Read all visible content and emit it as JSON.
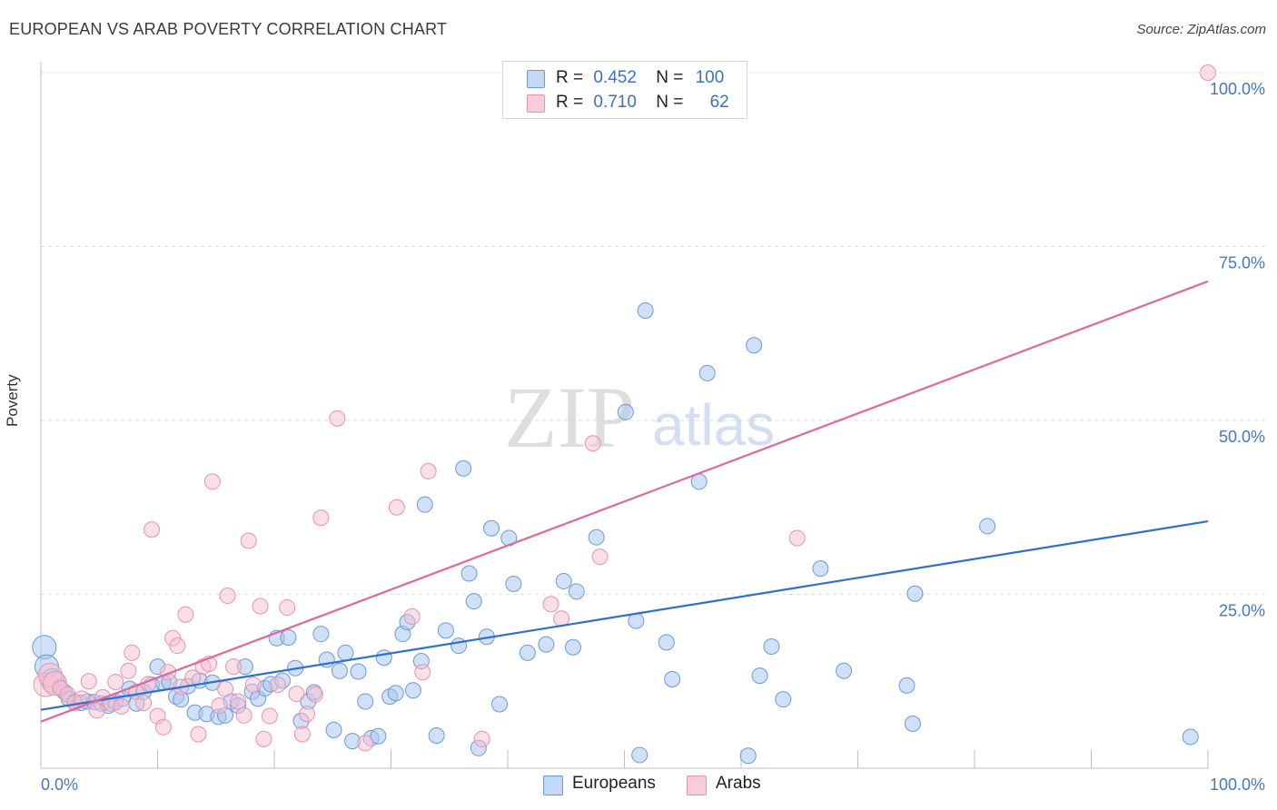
{
  "header": {
    "title": "EUROPEAN VS ARAB POVERTY CORRELATION CHART",
    "source": "Source: ZipAtlas.com"
  },
  "legend_stats": {
    "europeans": {
      "r_label": "R =",
      "r_value": "0.452",
      "n_label": "N =",
      "n_value": "100"
    },
    "arabs": {
      "r_label": "R =",
      "r_value": "0.710",
      "n_label": "N =",
      "n_value": "62"
    }
  },
  "watermark": {
    "zip": "ZIP",
    "atlas": "atlas"
  },
  "colors": {
    "europeans_fill": "#a9c6ee",
    "europeans_stroke": "#6c9ad8",
    "europeans_line": "#2f6fd0",
    "arabs_fill": "#f7bfd0",
    "arabs_stroke": "#e892ae",
    "arabs_line": "#e0689a",
    "tick_label": "#4477c4",
    "grid": "#dcdcdc"
  },
  "chart_data": {
    "type": "scatter",
    "title": "EUROPEAN VS ARAB POVERTY CORRELATION CHART",
    "xlabel": "",
    "ylabel": "Poverty",
    "xlim": [
      0,
      100
    ],
    "ylim": [
      0,
      100
    ],
    "x_tick_labels": [
      {
        "value": 0,
        "label": "0.0%"
      },
      {
        "value": 100,
        "label": "100.0%"
      }
    ],
    "y_tick_labels": [
      {
        "value": 25,
        "label": "25.0%"
      },
      {
        "value": 50,
        "label": "50.0%"
      },
      {
        "value": 75,
        "label": "75.0%"
      },
      {
        "value": 100,
        "label": "100.0%"
      }
    ],
    "grid": true,
    "legend_position": "bottom-center",
    "series": [
      {
        "name": "Europeans",
        "trend": {
          "x": [
            0,
            100
          ],
          "y": [
            8.4,
            35.5
          ]
        },
        "points": [
          [
            0.3,
            17.4
          ],
          [
            0.5,
            14.6
          ],
          [
            1.0,
            12.6
          ],
          [
            1.6,
            11.7
          ],
          [
            2.0,
            11.0
          ],
          [
            2.4,
            10.0
          ],
          [
            2.9,
            9.5
          ],
          [
            3.4,
            9.4
          ],
          [
            4.0,
            9.6
          ],
          [
            4.6,
            9.5
          ],
          [
            5.2,
            9.3
          ],
          [
            5.8,
            9.0
          ],
          [
            6.4,
            9.5
          ],
          [
            7.0,
            10.0
          ],
          [
            7.6,
            11.4
          ],
          [
            8.2,
            9.3
          ],
          [
            8.8,
            11.0
          ],
          [
            9.5,
            12.0
          ],
          [
            10.0,
            14.6
          ],
          [
            10.5,
            12.3
          ],
          [
            11.0,
            12.4
          ],
          [
            11.6,
            10.3
          ],
          [
            12.0,
            9.9
          ],
          [
            12.6,
            11.8
          ],
          [
            13.2,
            8.0
          ],
          [
            13.6,
            12.6
          ],
          [
            14.2,
            7.8
          ],
          [
            14.7,
            12.3
          ],
          [
            15.2,
            7.4
          ],
          [
            15.8,
            7.6
          ],
          [
            16.3,
            9.6
          ],
          [
            16.9,
            9.0
          ],
          [
            17.5,
            14.6
          ],
          [
            18.1,
            11.0
          ],
          [
            18.6,
            10.0
          ],
          [
            19.2,
            11.5
          ],
          [
            19.7,
            12.1
          ],
          [
            20.2,
            18.7
          ],
          [
            20.7,
            12.6
          ],
          [
            21.2,
            18.8
          ],
          [
            21.8,
            14.4
          ],
          [
            22.3,
            6.8
          ],
          [
            22.9,
            9.6
          ],
          [
            23.4,
            10.9
          ],
          [
            24.0,
            19.3
          ],
          [
            24.5,
            15.6
          ],
          [
            25.1,
            5.5
          ],
          [
            25.6,
            14.0
          ],
          [
            26.1,
            16.6
          ],
          [
            26.7,
            3.9
          ],
          [
            27.2,
            13.9
          ],
          [
            27.8,
            9.6
          ],
          [
            28.3,
            4.3
          ],
          [
            28.9,
            4.6
          ],
          [
            29.4,
            15.9
          ],
          [
            29.9,
            10.3
          ],
          [
            30.4,
            10.8
          ],
          [
            31.0,
            19.3
          ],
          [
            31.4,
            21.0
          ],
          [
            31.9,
            11.2
          ],
          [
            32.6,
            15.4
          ],
          [
            32.9,
            37.9
          ],
          [
            33.9,
            4.7
          ],
          [
            34.7,
            19.8
          ],
          [
            35.8,
            17.6
          ],
          [
            36.2,
            43.1
          ],
          [
            36.7,
            28.0
          ],
          [
            37.1,
            24.0
          ],
          [
            37.5,
            2.9
          ],
          [
            38.2,
            18.9
          ],
          [
            38.6,
            34.5
          ],
          [
            39.3,
            9.2
          ],
          [
            40.1,
            33.1
          ],
          [
            40.5,
            26.5
          ],
          [
            41.7,
            16.6
          ],
          [
            43.3,
            17.8
          ],
          [
            44.8,
            26.9
          ],
          [
            45.6,
            17.4
          ],
          [
            45.9,
            25.4
          ],
          [
            47.6,
            33.2
          ],
          [
            50.1,
            51.2
          ],
          [
            51.0,
            21.2
          ],
          [
            51.3,
            1.9
          ],
          [
            51.8,
            65.8
          ],
          [
            53.6,
            18.1
          ],
          [
            54.1,
            12.8
          ],
          [
            56.4,
            41.2
          ],
          [
            57.1,
            56.8
          ],
          [
            60.6,
            1.8
          ],
          [
            61.1,
            60.8
          ],
          [
            61.6,
            13.3
          ],
          [
            62.6,
            17.5
          ],
          [
            63.6,
            9.9
          ],
          [
            66.8,
            28.7
          ],
          [
            68.8,
            14.0
          ],
          [
            74.2,
            11.9
          ],
          [
            74.7,
            6.4
          ],
          [
            74.9,
            25.1
          ],
          [
            81.1,
            34.8
          ],
          [
            98.5,
            4.5
          ]
        ]
      },
      {
        "name": "Arabs",
        "trend": {
          "x": [
            0,
            100
          ],
          "y": [
            6.7,
            70.0
          ]
        },
        "points": [
          [
            0.4,
            12.0
          ],
          [
            0.8,
            13.4
          ],
          [
            1.2,
            12.2
          ],
          [
            1.7,
            11.5
          ],
          [
            2.3,
            10.6
          ],
          [
            2.9,
            9.4
          ],
          [
            3.5,
            10.0
          ],
          [
            4.1,
            12.5
          ],
          [
            4.8,
            8.3
          ],
          [
            5.3,
            10.2
          ],
          [
            6.0,
            9.3
          ],
          [
            6.4,
            12.4
          ],
          [
            6.9,
            8.9
          ],
          [
            7.5,
            14.0
          ],
          [
            7.8,
            16.6
          ],
          [
            8.2,
            11.0
          ],
          [
            8.8,
            9.4
          ],
          [
            9.2,
            12.1
          ],
          [
            9.5,
            34.3
          ],
          [
            10.0,
            7.5
          ],
          [
            10.5,
            5.9
          ],
          [
            10.9,
            13.8
          ],
          [
            11.3,
            18.7
          ],
          [
            11.7,
            17.6
          ],
          [
            12.0,
            11.7
          ],
          [
            12.4,
            22.1
          ],
          [
            13.0,
            13.0
          ],
          [
            13.5,
            4.9
          ],
          [
            13.9,
            14.6
          ],
          [
            14.4,
            15.0
          ],
          [
            14.7,
            41.2
          ],
          [
            15.3,
            9.0
          ],
          [
            15.8,
            11.4
          ],
          [
            16.0,
            24.8
          ],
          [
            16.5,
            14.6
          ],
          [
            16.9,
            9.6
          ],
          [
            17.4,
            7.6
          ],
          [
            17.8,
            32.7
          ],
          [
            18.2,
            12.0
          ],
          [
            18.8,
            23.3
          ],
          [
            19.1,
            4.2
          ],
          [
            19.6,
            7.5
          ],
          [
            20.3,
            12.0
          ],
          [
            21.1,
            23.1
          ],
          [
            21.9,
            10.7
          ],
          [
            22.4,
            4.9
          ],
          [
            22.8,
            7.8
          ],
          [
            23.5,
            10.6
          ],
          [
            24.0,
            36.0
          ],
          [
            25.4,
            50.3
          ],
          [
            27.8,
            3.6
          ],
          [
            30.5,
            37.5
          ],
          [
            31.8,
            21.8
          ],
          [
            32.7,
            13.8
          ],
          [
            33.2,
            42.7
          ],
          [
            37.8,
            4.2
          ],
          [
            43.7,
            23.6
          ],
          [
            44.6,
            21.5
          ],
          [
            47.3,
            46.7
          ],
          [
            47.9,
            30.4
          ],
          [
            64.8,
            33.1
          ],
          [
            100.0,
            100.0
          ]
        ]
      }
    ]
  },
  "bottom_legend": {
    "europeans": "Europeans",
    "arabs": "Arabs"
  }
}
